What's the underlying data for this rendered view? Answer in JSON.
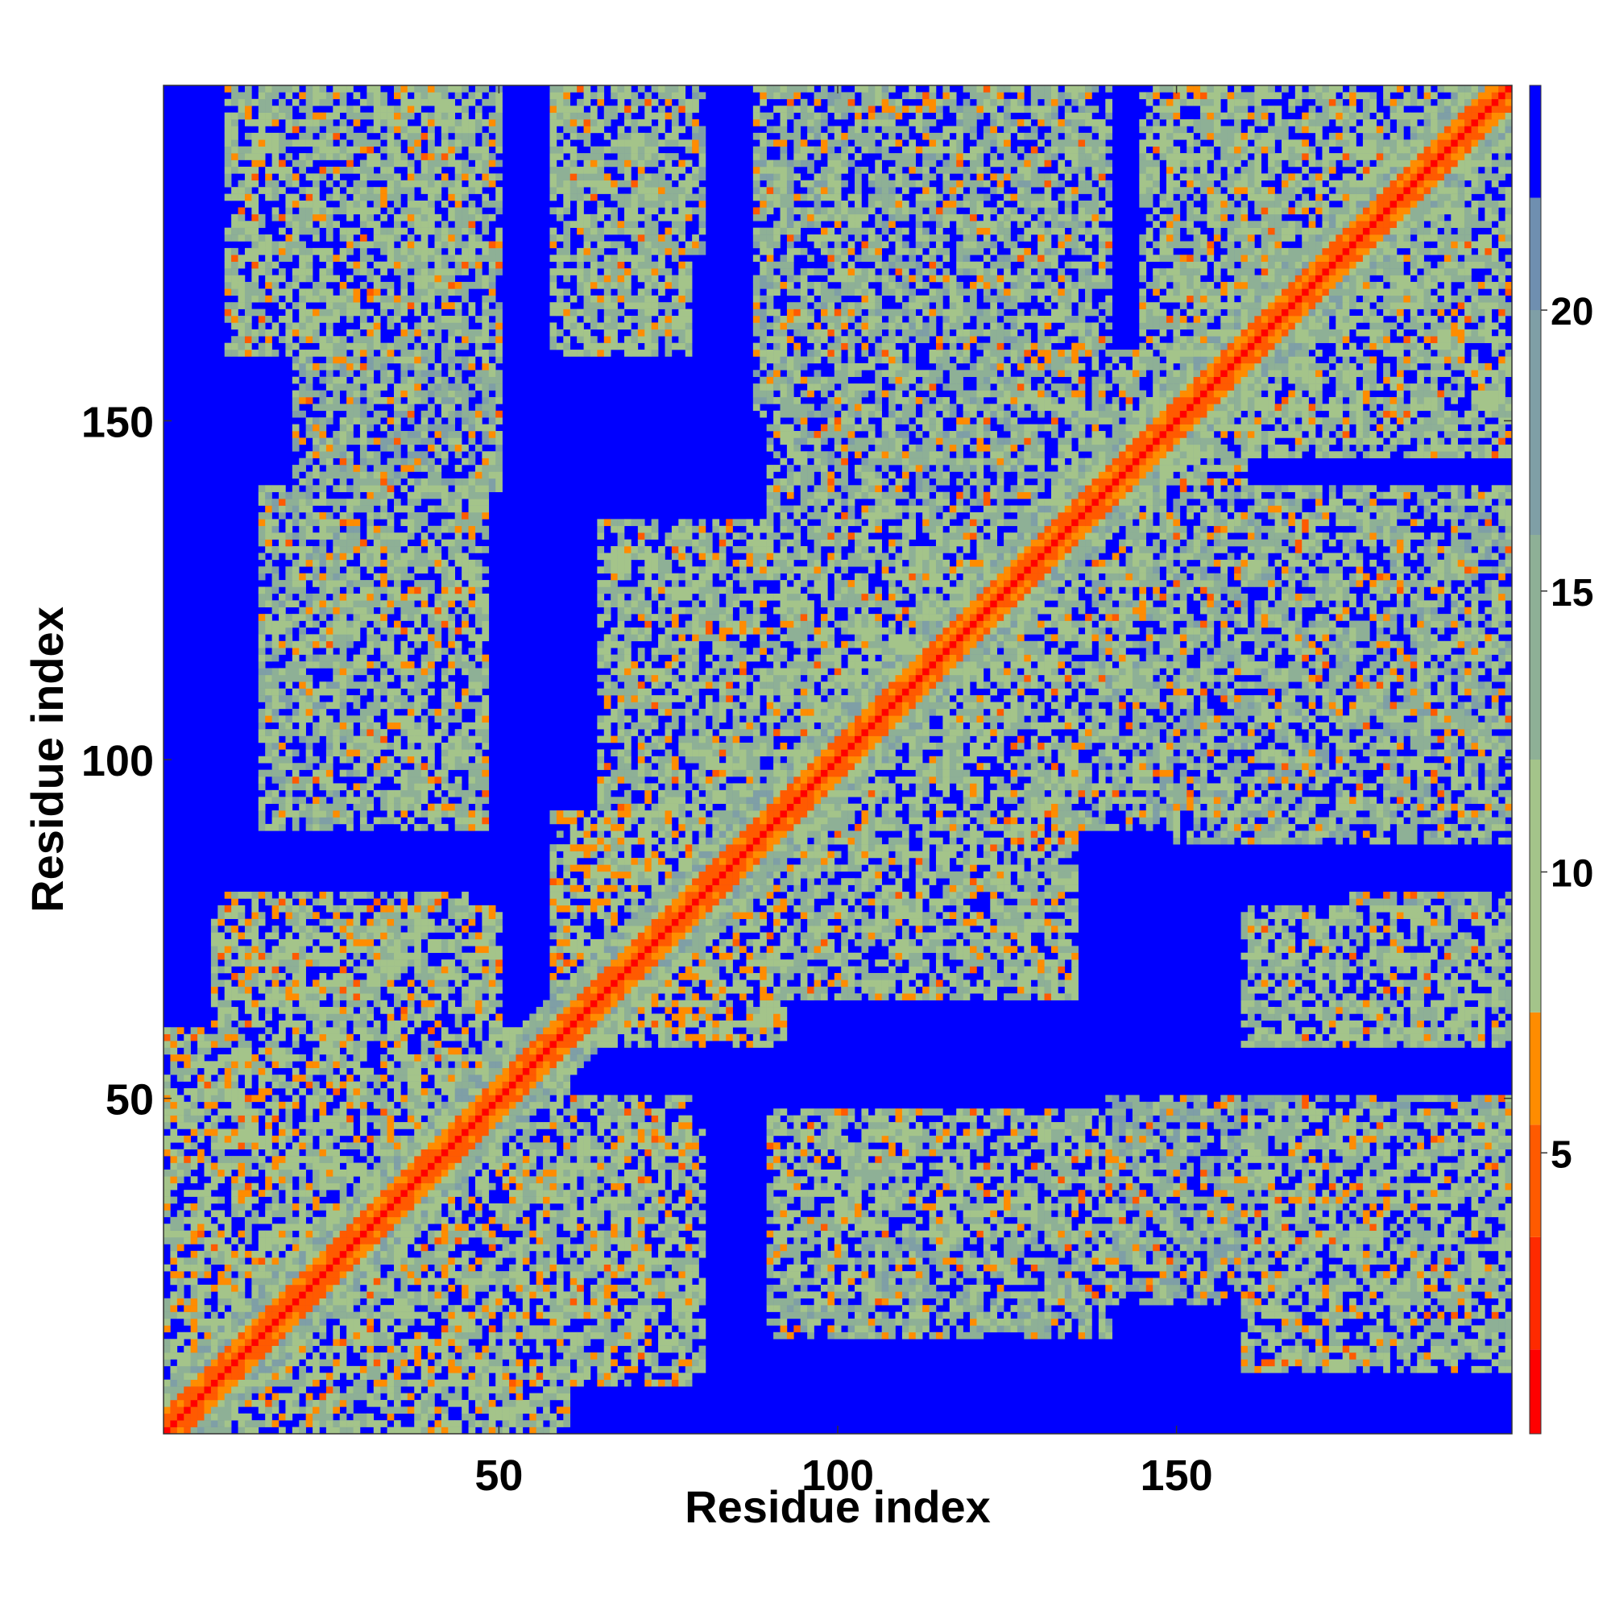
{
  "chart_data": {
    "type": "heatmap",
    "title": "",
    "xlabel": "Residue index",
    "ylabel": "Residue index",
    "x_range": [
      1,
      199
    ],
    "y_range": [
      1,
      199
    ],
    "x_ticks": [
      50,
      100,
      150
    ],
    "y_ticks": [
      50,
      100,
      150
    ],
    "colorbar": {
      "range": [
        0,
        24
      ],
      "ticks": [
        5,
        10,
        15,
        20
      ],
      "bins": [
        {
          "from": 0,
          "to": 1.5,
          "color": "#ff0000"
        },
        {
          "from": 1.5,
          "to": 3.5,
          "color": "#ff2a00"
        },
        {
          "from": 3.5,
          "to": 5.5,
          "color": "#ff5a00"
        },
        {
          "from": 5.5,
          "to": 7.5,
          "color": "#ff8c00"
        },
        {
          "from": 7.5,
          "to": 12,
          "color": "#a4c48a"
        },
        {
          "from": 12,
          "to": 16,
          "color": "#8eb096"
        },
        {
          "from": 16,
          "to": 20,
          "color": "#7f9fa6"
        },
        {
          "from": 20,
          "to": 22,
          "color": "#6f8fb0"
        },
        {
          "from": 22,
          "to": 24,
          "color": "#0000ff"
        }
      ]
    },
    "matrix_description_values": {
      "diagonal_value": 1,
      "background_value": 24,
      "contact_regions": [
        {
          "i": [
            1,
            60
          ],
          "j": [
            1,
            60
          ],
          "v": 11
        },
        {
          "i": [
            10,
            48
          ],
          "j": [
            160,
            199
          ],
          "v": 12
        },
        {
          "i": [
            58,
            78
          ],
          "j": [
            160,
            199
          ],
          "v": 12
        },
        {
          "i": [
            88,
            140
          ],
          "j": [
            150,
            199
          ],
          "v": 13
        },
        {
          "i": [
            145,
            199
          ],
          "j": [
            150,
            199
          ],
          "v": 12
        },
        {
          "i": [
            30,
            48
          ],
          "j": [
            90,
            140
          ],
          "v": 12
        },
        {
          "i": [
            8,
            50
          ],
          "j": [
            58,
            78
          ],
          "v": 11
        },
        {
          "i": [
            58,
            78
          ],
          "j": [
            58,
            92
          ],
          "v": 10
        },
        {
          "i": [
            58,
            80
          ],
          "j": [
            10,
            45
          ],
          "v": 12
        },
        {
          "i": [
            90,
            140
          ],
          "j": [
            15,
            45
          ],
          "v": 13
        },
        {
          "i": [
            140,
            199
          ],
          "j": [
            20,
            50
          ],
          "v": 14
        },
        {
          "i": [
            175,
            199
          ],
          "j": [
            60,
            80
          ],
          "v": 14
        },
        {
          "i": [
            85,
            135
          ],
          "j": [
            65,
            125
          ],
          "v": 12
        },
        {
          "i": [
            120,
            199
          ],
          "j": [
            90,
            130
          ],
          "v": 13
        },
        {
          "i": [
            110,
            145
          ],
          "j": [
            125,
            160
          ],
          "v": 12
        }
      ]
    }
  }
}
